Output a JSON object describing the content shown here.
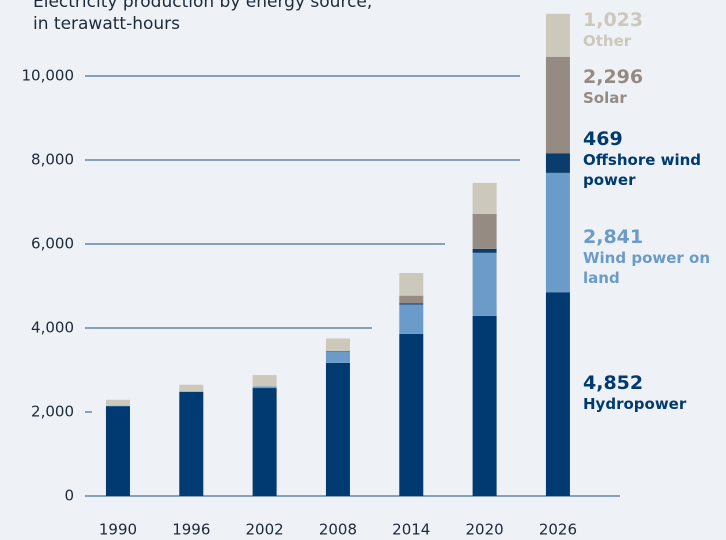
{
  "chart_data": {
    "type": "bar",
    "stacked": true,
    "title": "Electricity production by energy source, in terawatt-hours",
    "categories": [
      "1990",
      "1996",
      "2002",
      "2008",
      "2014",
      "2020",
      "2026"
    ],
    "series": [
      {
        "name": "Hydropower",
        "color": "#003a70",
        "values": [
          2140,
          2480,
          2570,
          3170,
          3860,
          4290,
          4852
        ],
        "value_labels": [
          null,
          null,
          null,
          null,
          null,
          null,
          "4,852"
        ]
      },
      {
        "name": "Wind power on land",
        "color": "#6b9bc8",
        "values": [
          10,
          10,
          40,
          260,
          700,
          1500,
          2841
        ],
        "value_labels": [
          null,
          null,
          null,
          null,
          null,
          null,
          "2,841"
        ]
      },
      {
        "name": "Offshore wind power",
        "color": "#0a3d6e",
        "values": [
          0,
          0,
          0,
          10,
          30,
          95,
          469
        ],
        "value_labels": [
          null,
          null,
          null,
          null,
          null,
          null,
          "469"
        ]
      },
      {
        "name": "Solar",
        "color": "#958b83",
        "values": [
          0,
          0,
          0,
          10,
          180,
          830,
          2296
        ],
        "value_labels": [
          null,
          null,
          null,
          null,
          null,
          null,
          "2,296"
        ]
      },
      {
        "name": "Other",
        "color": "#cdc8bc",
        "values": [
          140,
          160,
          270,
          300,
          540,
          740,
          1023
        ],
        "value_labels": [
          null,
          null,
          null,
          null,
          null,
          null,
          "1,023"
        ]
      }
    ],
    "ylim": [
      0,
      11500
    ],
    "yticks": [
      0,
      {
        "value": 2000,
        "label": "2,000"
      },
      {
        "value": 4000,
        "label": "4,000"
      },
      {
        "value": 6000,
        "label": "6,000"
      },
      {
        "value": 8000,
        "label": "8,000"
      },
      {
        "value": 10000,
        "label": "10,000"
      }
    ],
    "grid": true
  }
}
